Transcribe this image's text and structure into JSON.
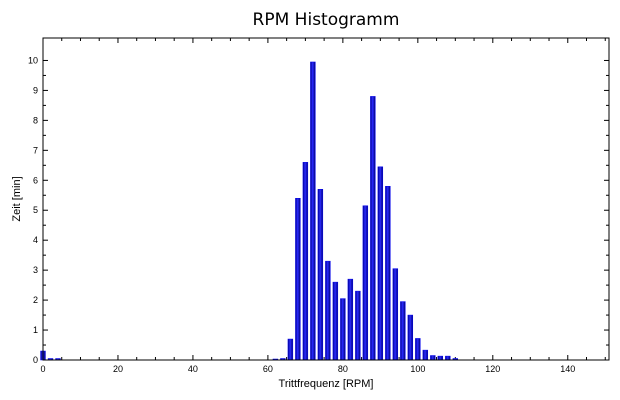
{
  "chart_data": {
    "type": "bar",
    "title": "RPM Histogramm",
    "xlabel": "Trittfrequenz [RPM]",
    "ylabel": "Zeit [min]",
    "xlim": [
      0,
      151
    ],
    "ylim": [
      0,
      10.75
    ],
    "x_ticks": [
      0,
      20,
      40,
      60,
      80,
      100,
      120,
      140
    ],
    "y_ticks": [
      0,
      1,
      2,
      3,
      4,
      5,
      6,
      7,
      8,
      9,
      10
    ],
    "bar_width": 1.3,
    "grid": false,
    "bar_color": "#0000ee",
    "bars": [
      {
        "x": 0,
        "y": 0.3
      },
      {
        "x": 2,
        "y": 0.05
      },
      {
        "x": 4,
        "y": 0.05
      },
      {
        "x": 62,
        "y": 0.02
      },
      {
        "x": 64,
        "y": 0.05
      },
      {
        "x": 66,
        "y": 0.7
      },
      {
        "x": 68,
        "y": 5.4
      },
      {
        "x": 70,
        "y": 6.6
      },
      {
        "x": 72,
        "y": 9.95
      },
      {
        "x": 74,
        "y": 5.7
      },
      {
        "x": 76,
        "y": 3.3
      },
      {
        "x": 78,
        "y": 2.6
      },
      {
        "x": 80,
        "y": 2.05
      },
      {
        "x": 82,
        "y": 2.7
      },
      {
        "x": 84,
        "y": 2.3
      },
      {
        "x": 86,
        "y": 5.15
      },
      {
        "x": 88,
        "y": 8.8
      },
      {
        "x": 90,
        "y": 6.45
      },
      {
        "x": 92,
        "y": 5.8
      },
      {
        "x": 94,
        "y": 3.05
      },
      {
        "x": 96,
        "y": 1.95
      },
      {
        "x": 98,
        "y": 1.5
      },
      {
        "x": 100,
        "y": 0.72
      },
      {
        "x": 102,
        "y": 0.33
      },
      {
        "x": 104,
        "y": 0.15
      },
      {
        "x": 106,
        "y": 0.13
      },
      {
        "x": 108,
        "y": 0.13
      },
      {
        "x": 110,
        "y": 0.05
      }
    ]
  }
}
